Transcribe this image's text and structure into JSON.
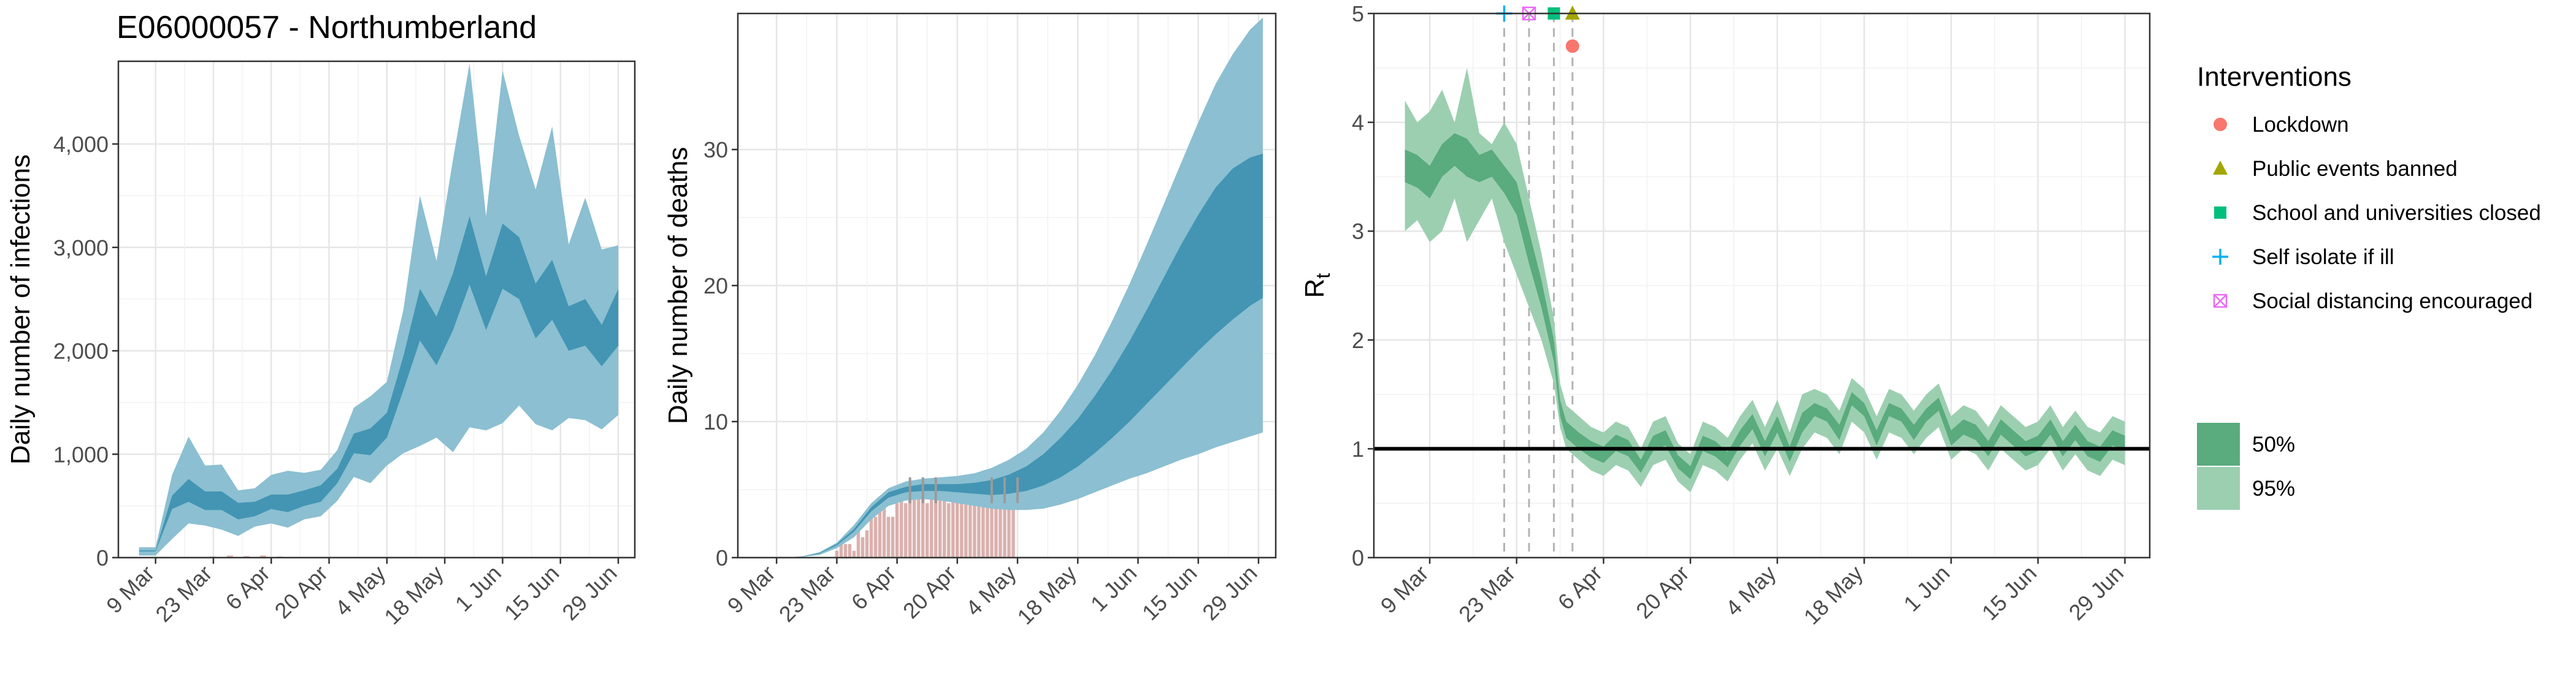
{
  "figure_title": "E06000057 - Northumberland",
  "chart_data": [
    {
      "type": "area",
      "ylabel": "Daily number of infections",
      "xlabel": "",
      "x_ticks": [
        "9 Mar",
        "23 Mar",
        "6 Apr",
        "20 Apr",
        "4 May",
        "18 May",
        "1 Jun",
        "15 Jun",
        "29 Jun"
      ],
      "xlim": [
        -9,
        116
      ],
      "ylim": [
        0,
        4800
      ],
      "y_ticks": [
        0,
        1000,
        2000,
        3000,
        4000
      ],
      "y_tick_labels": [
        "0",
        "1,000",
        "2,000",
        "3,000",
        "4,000"
      ],
      "grid": true,
      "colors": {
        "ci95": "#8bbfd1",
        "ci50": "#4395b3"
      },
      "series": [
        {
          "x": [
            -4,
            0,
            4,
            8,
            12,
            16,
            20,
            24,
            28,
            32,
            36,
            40,
            44,
            48,
            52,
            56,
            60,
            64,
            68,
            72,
            76,
            80,
            84,
            88,
            92,
            96,
            100,
            104,
            108,
            112
          ],
          "ci95_low": [
            20,
            20,
            180,
            330,
            310,
            270,
            210,
            300,
            330,
            290,
            370,
            400,
            550,
            780,
            720,
            890,
            1010,
            1080,
            1160,
            1020,
            1260,
            1230,
            1300,
            1470,
            1290,
            1230,
            1350,
            1330,
            1240,
            1380
          ],
          "ci95_high": [
            100,
            100,
            800,
            1170,
            890,
            900,
            650,
            670,
            800,
            840,
            820,
            850,
            1040,
            1450,
            1560,
            1700,
            2400,
            3500,
            2870,
            3850,
            4780,
            3300,
            4710,
            4080,
            3560,
            4170,
            3030,
            3480,
            2980,
            3020
          ],
          "ci50_low": [
            60,
            60,
            470,
            540,
            460,
            460,
            370,
            400,
            470,
            440,
            500,
            540,
            720,
            1010,
            990,
            1160,
            1620,
            2100,
            1860,
            2200,
            2640,
            2200,
            2600,
            2500,
            2120,
            2300,
            2000,
            2050,
            1850,
            2050
          ],
          "ci50_high": [
            70,
            70,
            600,
            760,
            640,
            640,
            530,
            540,
            610,
            610,
            650,
            700,
            860,
            1200,
            1250,
            1400,
            1950,
            2600,
            2330,
            2750,
            3300,
            2720,
            3230,
            3100,
            2650,
            2880,
            2430,
            2500,
            2250,
            2600
          ]
        }
      ],
      "bars_x": [
        14,
        18,
        22,
        26,
        30
      ],
      "bars_values": [
        10,
        20,
        15,
        20,
        10
      ]
    },
    {
      "type": "area",
      "ylabel": "Daily number of deaths",
      "xlabel": "",
      "x_ticks": [
        "9 Mar",
        "23 Mar",
        "6 Apr",
        "20 Apr",
        "4 May",
        "18 May",
        "1 Jun",
        "15 Jun",
        "29 Jun"
      ],
      "xlim": [
        -9,
        116
      ],
      "ylim": [
        0,
        40
      ],
      "y_ticks": [
        0,
        10,
        20,
        30
      ],
      "y_tick_labels": [
        "0",
        "10",
        "20",
        "30"
      ],
      "grid": true,
      "colors": {
        "ci95": "#8bbfd1",
        "ci50": "#4395b3",
        "bars": "#d4a3a0"
      },
      "series": [
        {
          "x": [
            2,
            6,
            10,
            14,
            18,
            22,
            26,
            30,
            34,
            38,
            42,
            46,
            50,
            54,
            58,
            62,
            66,
            70,
            74,
            78,
            82,
            86,
            90,
            94,
            98,
            102,
            106,
            110,
            113
          ],
          "ci95_low": [
            0.0,
            0.05,
            0.2,
            0.7,
            1.5,
            2.8,
            3.8,
            4.2,
            4.3,
            4.2,
            4.0,
            3.8,
            3.6,
            3.5,
            3.5,
            3.6,
            3.9,
            4.3,
            4.8,
            5.3,
            5.8,
            6.2,
            6.7,
            7.2,
            7.6,
            8.1,
            8.5,
            8.9,
            9.2
          ],
          "ci95_high": [
            0.0,
            0.1,
            0.4,
            1.1,
            2.4,
            4.0,
            5.1,
            5.6,
            5.8,
            5.9,
            6.0,
            6.2,
            6.6,
            7.2,
            8.0,
            9.2,
            10.8,
            12.7,
            14.9,
            17.4,
            20.1,
            23.0,
            26.0,
            29.0,
            32.0,
            34.8,
            37.0,
            38.8,
            39.7
          ],
          "ci50_low": [
            0.0,
            0.07,
            0.3,
            0.9,
            1.9,
            3.4,
            4.4,
            4.8,
            4.9,
            4.9,
            4.8,
            4.7,
            4.6,
            4.7,
            4.9,
            5.3,
            5.9,
            6.7,
            7.7,
            8.8,
            10.0,
            11.3,
            12.6,
            13.9,
            15.2,
            16.4,
            17.5,
            18.5,
            19.1
          ],
          "ci50_high": [
            0.0,
            0.08,
            0.35,
            1.0,
            2.1,
            3.7,
            4.8,
            5.2,
            5.4,
            5.4,
            5.4,
            5.5,
            5.7,
            6.1,
            6.7,
            7.6,
            8.8,
            10.2,
            11.9,
            13.8,
            15.9,
            18.2,
            20.6,
            23.0,
            25.2,
            27.2,
            28.6,
            29.4,
            29.7
          ]
        }
      ],
      "bars_x": [
        14,
        15,
        16,
        17,
        18,
        19,
        20,
        21,
        22,
        23,
        24,
        25,
        26,
        27,
        28,
        29,
        30,
        31,
        32,
        33,
        34,
        35,
        36,
        37,
        38,
        39,
        40,
        41,
        42,
        43,
        44,
        45,
        46,
        47,
        48,
        49,
        50,
        51,
        52,
        53,
        54,
        55
      ],
      "bars_values": [
        0.5,
        1.0,
        1.0,
        1.0,
        0.5,
        2.0,
        1.5,
        2.0,
        3.0,
        3.0,
        3.5,
        4.0,
        3.0,
        3.0,
        4.0,
        4.5,
        4.0,
        5.0,
        5.0,
        4.5,
        5.0,
        4.0,
        5.0,
        5.0,
        5.0,
        4.5,
        4.0,
        5.0,
        5.0,
        4.0,
        4.0,
        4.0,
        5.0,
        4.0,
        4.0,
        5.0,
        4.5,
        4.0,
        4.0,
        5.0,
        4.0,
        4.0
      ],
      "marks_x": [
        31,
        34,
        37,
        50,
        53,
        56
      ]
    },
    {
      "type": "line",
      "ylabel": "Rt",
      "xlabel": "",
      "x_ticks": [
        "9 Mar",
        "23 Mar",
        "6 Apr",
        "20 Apr",
        "4 May",
        "18 May",
        "1 Jun",
        "15 Jun",
        "29 Jun"
      ],
      "xlim": [
        -9,
        116
      ],
      "ylim": [
        0,
        5
      ],
      "y_ticks": [
        0,
        1,
        2,
        3,
        4,
        5
      ],
      "y_tick_labels": [
        "0",
        "1",
        "2",
        "3",
        "4",
        "5"
      ],
      "grid": true,
      "reference_line": 1,
      "colors": {
        "ci95": "#9ccfb0",
        "ci50": "#5aab7e"
      },
      "series": [
        {
          "x": [
            -4,
            -2,
            0,
            2,
            4,
            6,
            8,
            10,
            12,
            14,
            16,
            18,
            20,
            21,
            22,
            23,
            24,
            26,
            28,
            30,
            32,
            34,
            36,
            38,
            40,
            42,
            44,
            46,
            48,
            50,
            52,
            54,
            56,
            58,
            60,
            62,
            64,
            66,
            68,
            70,
            72,
            74,
            76,
            78,
            80,
            82,
            84,
            86,
            88,
            90,
            92,
            94,
            96,
            98,
            100,
            102,
            104,
            106,
            108,
            110,
            112
          ],
          "ci95_low": [
            3.0,
            3.1,
            2.9,
            3.0,
            3.3,
            2.9,
            3.1,
            3.3,
            2.9,
            2.6,
            2.3,
            2.0,
            1.6,
            1.2,
            1.0,
            0.95,
            0.9,
            0.8,
            0.75,
            0.85,
            0.8,
            0.65,
            0.85,
            0.9,
            0.7,
            0.6,
            0.85,
            0.8,
            0.7,
            0.9,
            1.05,
            0.8,
            1.0,
            0.75,
            1.0,
            1.15,
            1.1,
            0.95,
            1.25,
            1.15,
            0.9,
            1.15,
            1.1,
            0.95,
            1.1,
            1.2,
            0.9,
            1.0,
            0.95,
            0.8,
            1.0,
            0.9,
            0.8,
            0.85,
            1.0,
            0.8,
            0.95,
            0.8,
            0.75,
            0.9,
            0.85
          ],
          "ci95_high": [
            4.2,
            4.0,
            4.1,
            4.3,
            4.0,
            4.5,
            3.9,
            3.8,
            4.0,
            3.8,
            3.3,
            2.8,
            2.2,
            1.6,
            1.4,
            1.35,
            1.3,
            1.2,
            1.15,
            1.25,
            1.2,
            1.0,
            1.25,
            1.3,
            1.05,
            0.95,
            1.25,
            1.2,
            1.1,
            1.3,
            1.45,
            1.2,
            1.45,
            1.15,
            1.5,
            1.55,
            1.5,
            1.35,
            1.65,
            1.55,
            1.3,
            1.55,
            1.5,
            1.35,
            1.5,
            1.6,
            1.3,
            1.4,
            1.35,
            1.2,
            1.4,
            1.3,
            1.2,
            1.25,
            1.4,
            1.2,
            1.35,
            1.2,
            1.15,
            1.3,
            1.25
          ],
          "ci50_low": [
            3.45,
            3.4,
            3.3,
            3.5,
            3.6,
            3.5,
            3.45,
            3.5,
            3.35,
            3.15,
            2.7,
            2.3,
            1.8,
            1.3,
            1.1,
            1.05,
            1.0,
            0.92,
            0.87,
            0.98,
            0.93,
            0.78,
            0.98,
            1.03,
            0.82,
            0.72,
            0.98,
            0.93,
            0.83,
            1.03,
            1.18,
            0.93,
            1.15,
            0.88,
            1.15,
            1.3,
            1.25,
            1.08,
            1.4,
            1.3,
            1.03,
            1.3,
            1.25,
            1.08,
            1.25,
            1.35,
            1.03,
            1.13,
            1.08,
            0.93,
            1.13,
            1.03,
            0.93,
            0.98,
            1.13,
            0.93,
            1.08,
            0.93,
            0.88,
            1.03,
            0.98
          ],
          "ci50_high": [
            3.75,
            3.7,
            3.6,
            3.8,
            3.9,
            3.85,
            3.7,
            3.75,
            3.6,
            3.45,
            3.0,
            2.55,
            2.0,
            1.45,
            1.25,
            1.2,
            1.15,
            1.07,
            1.02,
            1.13,
            1.08,
            0.9,
            1.12,
            1.17,
            0.94,
            0.84,
            1.12,
            1.07,
            0.97,
            1.17,
            1.32,
            1.07,
            1.3,
            1.02,
            1.33,
            1.42,
            1.37,
            1.22,
            1.52,
            1.42,
            1.17,
            1.42,
            1.37,
            1.22,
            1.37,
            1.47,
            1.17,
            1.27,
            1.22,
            1.07,
            1.27,
            1.17,
            1.07,
            1.12,
            1.27,
            1.07,
            1.22,
            1.07,
            1.02,
            1.17,
            1.12
          ]
        }
      ],
      "interventions": [
        {
          "name": "Self isolate if ill",
          "x": 12,
          "y": 5.0
        },
        {
          "name": "Social distancing encouraged",
          "x": 16,
          "y": 5.0
        },
        {
          "name": "School and universities closed",
          "x": 20,
          "y": 5.0
        },
        {
          "name": "Public events banned",
          "x": 23,
          "y": 5.0
        },
        {
          "name": "Lockdown",
          "x": 23,
          "y": 4.7
        }
      ],
      "legend": {
        "title": "Interventions",
        "placement": "right",
        "items": [
          {
            "label": "Lockdown",
            "symbol": "circle",
            "color": "#f8766d"
          },
          {
            "label": "Public events banned",
            "symbol": "triangle",
            "color": "#a3a500"
          },
          {
            "label": "School and universities closed",
            "symbol": "square",
            "color": "#00bf7d"
          },
          {
            "label": "Self isolate if ill",
            "symbol": "plus",
            "color": "#00b0f6"
          },
          {
            "label": "Social distancing encouraged",
            "symbol": "boxx",
            "color": "#e76bf3"
          }
        ],
        "ci_items": [
          {
            "label": "50%",
            "color": "#5aab7e"
          },
          {
            "label": "95%",
            "color": "#9ccfb0"
          }
        ]
      }
    }
  ]
}
